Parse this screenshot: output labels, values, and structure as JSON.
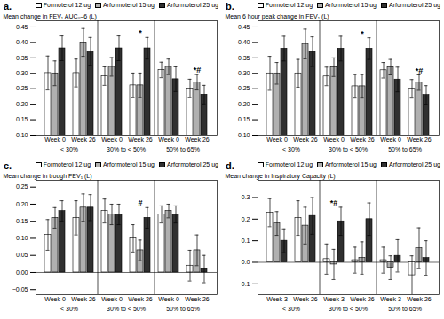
{
  "chart_data": [
    {
      "type": "bar",
      "title": "a.",
      "ylabel": "Mean change in FEV₁ AUC₀–6 (L)",
      "categories": [
        "Week 0",
        "Week 26",
        "Week 0",
        "Week 26",
        "Week 0",
        "Week 26"
      ],
      "category_groups": [
        "< 30%",
        "< 30%",
        "30% to < 50%",
        "30% to < 50%",
        "50% to 65%",
        "50% to 65%"
      ],
      "series": [
        {
          "name": "Formoterol 12 ug",
          "color": "white",
          "values": [
            0.301,
            0.301,
            0.291,
            0.261,
            0.311,
            0.251
          ],
          "errors": [
            0.055,
            0.045,
            0.03,
            0.04,
            0.025,
            0.03
          ]
        },
        {
          "name": "Arformoterol 15 ug",
          "color": "#b0b0b0",
          "values": [
            0.3,
            0.4,
            0.321,
            0.261,
            0.321,
            0.271
          ],
          "errors": [
            0.04,
            0.045,
            0.03,
            0.04,
            0.025,
            0.025
          ]
        },
        {
          "name": "Arformoterol 25 ug",
          "color": "#303030",
          "values": [
            0.381,
            0.371,
            0.381,
            0.381,
            0.281,
            0.231
          ],
          "errors": [
            0.04,
            0.045,
            0.04,
            0.035,
            0.04,
            0.03
          ]
        }
      ],
      "annotations": [
        null,
        null,
        null,
        "*",
        null,
        "*#"
      ],
      "ylim": [
        0.1,
        0.47
      ],
      "yticks": [
        {
          "value": 0.1,
          "label": "0.10"
        },
        0.15,
        {
          "value": 0.2,
          "label": "0.20"
        },
        0.25,
        {
          "value": 0.3,
          "label": "0.30"
        },
        0.35,
        {
          "value": 0.4,
          "label": "0.40"
        },
        0.45
      ],
      "legend": "upper right",
      "grid": false
    },
    {
      "type": "bar",
      "title": "b.",
      "ylabel": "Mean 6 hour peak change in FEV₁ (L)",
      "categories": [
        "Week 0",
        "Week 26",
        "Week 0",
        "Week 26",
        "Week 0",
        "Week 26"
      ],
      "category_groups": [
        "< 30%",
        "< 30%",
        "30% to < 50%",
        "30% to < 50%",
        "50% to 65%",
        "50% to 65%"
      ],
      "series": [
        {
          "name": "Formoterol 12 ug",
          "color": "white",
          "values": [
            0.3,
            0.3,
            0.29,
            0.258,
            0.31,
            0.25
          ],
          "errors": [
            0.055,
            0.045,
            0.03,
            0.038,
            0.025,
            0.03
          ]
        },
        {
          "name": "Arformoterol 15 ug",
          "color": "#b0b0b0",
          "values": [
            0.3,
            0.395,
            0.32,
            0.258,
            0.32,
            0.27
          ],
          "errors": [
            0.035,
            0.048,
            0.03,
            0.038,
            0.025,
            0.025
          ]
        },
        {
          "name": "Arformoterol 25 ug",
          "color": "#303030",
          "values": [
            0.38,
            0.37,
            0.38,
            0.38,
            0.28,
            0.23
          ],
          "errors": [
            0.04,
            0.048,
            0.04,
            0.035,
            0.04,
            0.03
          ]
        }
      ],
      "annotations": [
        null,
        null,
        null,
        "*",
        null,
        "*#"
      ],
      "ylim": [
        0.1,
        0.47
      ],
      "yticks": [
        {
          "value": 0.1,
          "label": "0.10"
        },
        0.15,
        {
          "value": 0.2,
          "label": "0.20"
        },
        0.25,
        {
          "value": 0.3,
          "label": "0.30"
        },
        0.35,
        {
          "value": 0.4,
          "label": "0.40"
        },
        0.45
      ],
      "legend": "upper right",
      "grid": false
    },
    {
      "type": "bar",
      "title": "c.",
      "ylabel": "Mean change in trough FEV₁ (L)",
      "categories": [
        "Week 0",
        "Week 26",
        "Week 0",
        "Week 26",
        "Week 0",
        "Week 26"
      ],
      "category_groups": [
        "< 30%",
        "< 30%",
        "30% to < 50%",
        "30% to < 50%",
        "50% to 65%",
        "50% to 65%"
      ],
      "series": [
        {
          "name": "Formoterol 12 ug",
          "color": "white",
          "values": [
            0.11,
            0.16,
            0.18,
            0.1,
            0.17,
            0.02
          ],
          "errors": [
            0.045,
            0.05,
            0.035,
            0.04,
            0.025,
            0.045
          ]
        },
        {
          "name": "Arformoterol 15 ug",
          "color": "#b0b0b0",
          "values": [
            0.16,
            0.19,
            0.17,
            0.065,
            0.18,
            0.065
          ],
          "errors": [
            0.03,
            0.04,
            0.03,
            0.03,
            0.02,
            0.045
          ]
        },
        {
          "name": "Arformoterol 25 ug",
          "color": "#303030",
          "values": [
            0.18,
            0.19,
            0.17,
            0.16,
            0.17,
            0.01
          ],
          "errors": [
            0.03,
            0.038,
            0.03,
            0.03,
            0.025,
            0.04
          ]
        }
      ],
      "annotations": [
        null,
        null,
        null,
        "#",
        null,
        null
      ],
      "ylim": [
        -0.065,
        0.27
      ],
      "yticks": [
        -0.05,
        {
          "value": 0,
          "label": "0.00"
        },
        0.05,
        {
          "value": 0.1,
          "label": "0.10"
        },
        0.15,
        {
          "value": 0.2,
          "label": "0.20"
        },
        0.25
      ],
      "legend": "upper right",
      "grid": false
    },
    {
      "type": "bar",
      "title": "d.",
      "ylabel": "Mean change in Inspiratory Capacity (L)",
      "categories": [
        "Week 3",
        "Week 26",
        "Week 3",
        "Week 26",
        "Week 3",
        "Week 26"
      ],
      "category_groups": [
        "< 30%",
        "< 30%",
        "30% to < 50%",
        "30% to < 50%",
        "50% to 65%",
        "50% to 65%"
      ],
      "series": [
        {
          "name": "Formoterol 12 ug",
          "color": "white",
          "values": [
            0.23,
            0.205,
            0.015,
            0.01,
            0.01,
            -0.06
          ],
          "errors": [
            0.065,
            0.08,
            0.07,
            0.06,
            0.06,
            0.09
          ]
        },
        {
          "name": "Arformoterol 15 ug",
          "color": "#b0b0b0",
          "values": [
            0.18,
            0.17,
            -0.01,
            0.02,
            -0.025,
            0.065
          ],
          "errors": [
            0.055,
            0.085,
            0.07,
            0.075,
            0.055,
            0.095
          ]
        },
        {
          "name": "Arformoterol 25 ug",
          "color": "#303030",
          "values": [
            0.1,
            0.215,
            0.19,
            0.2,
            0.03,
            0.02
          ],
          "errors": [
            0.055,
            0.085,
            0.065,
            0.075,
            0.075,
            0.08
          ]
        }
      ],
      "annotations": [
        null,
        null,
        "*#",
        null,
        null,
        null
      ],
      "ylim": [
        -0.15,
        0.38
      ],
      "yticks": [
        -0.1,
        {
          "value": 0,
          "label": "0.0"
        },
        0.1,
        0.2,
        0.3
      ],
      "legend": "upper right",
      "grid": false
    }
  ]
}
